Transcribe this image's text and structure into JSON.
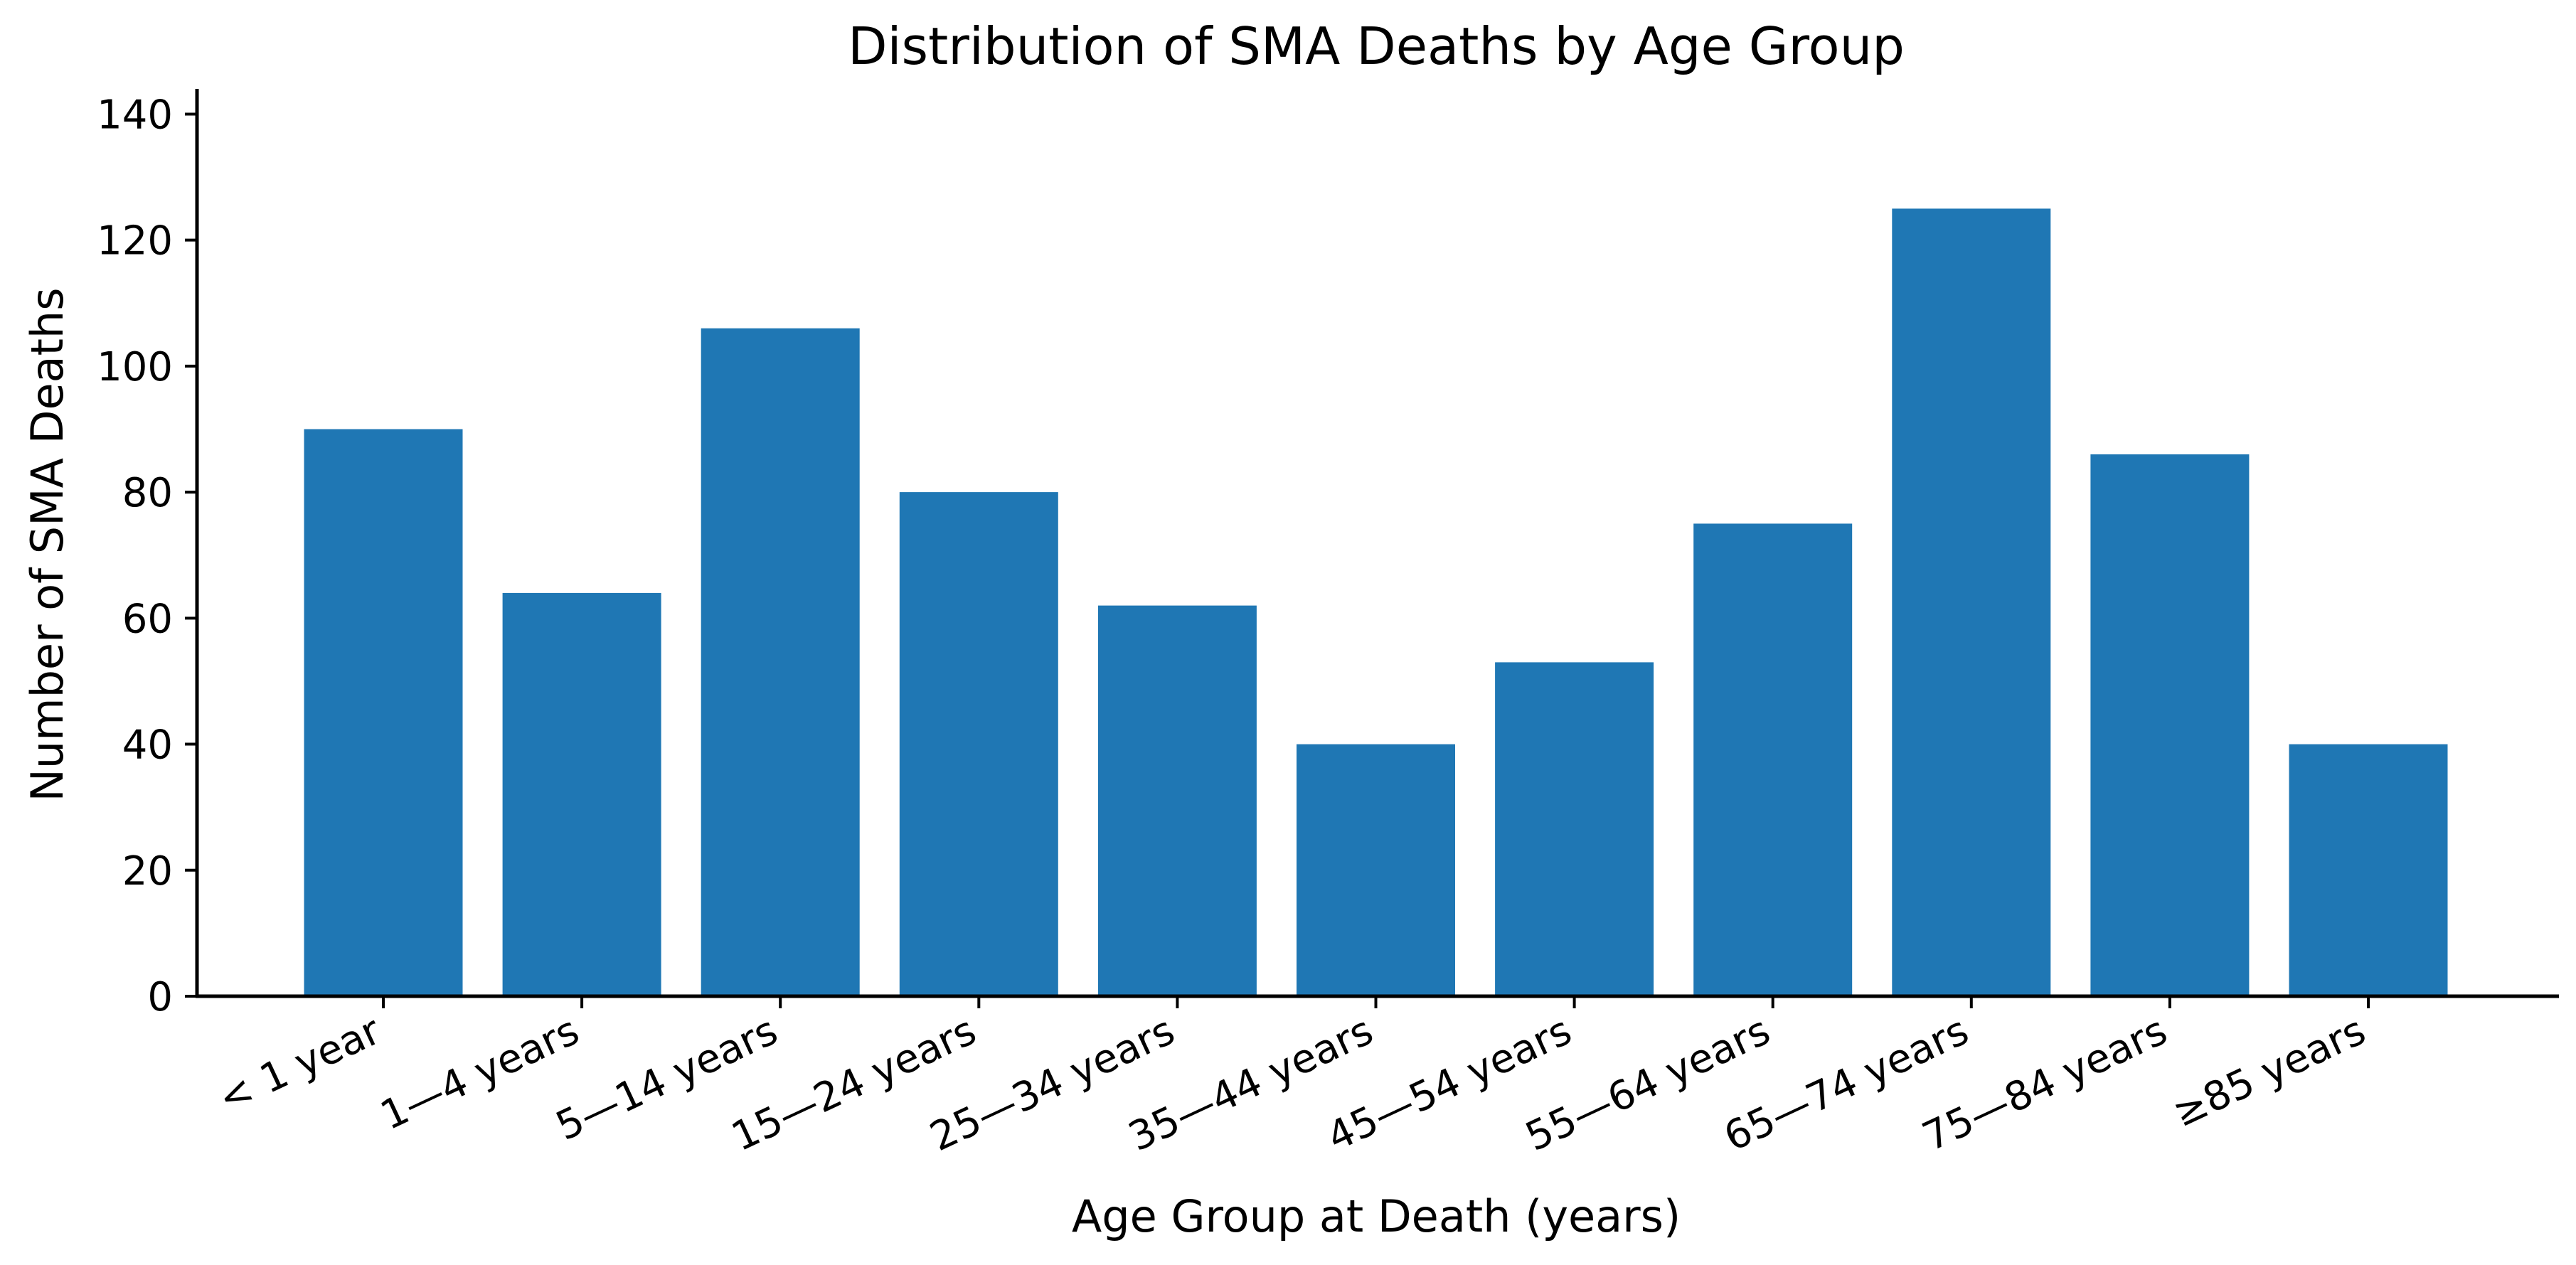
{
  "colors": {
    "bar": "#1f77b4",
    "axis": "#000000",
    "background": "#ffffff"
  },
  "chart_data": {
    "type": "bar",
    "title": "Distribution of SMA Deaths by Age Group",
    "xlabel": "Age Group at Death (years)",
    "ylabel": "Number of SMA Deaths",
    "categories": [
      "< 1 year",
      "1—4 years",
      "5—14 years",
      "15—24 years",
      "25—34 years",
      "35—44 years",
      "45—54 years",
      "55—64 years",
      "65—74 years",
      "75—84 years",
      "≥85 years"
    ],
    "values": [
      90,
      64,
      106,
      80,
      62,
      40,
      53,
      75,
      125,
      86,
      40
    ],
    "ylim": [
      0,
      144
    ],
    "yticks": [
      0,
      20,
      40,
      60,
      80,
      100,
      120,
      140
    ],
    "grid": false,
    "legend": "none",
    "spines": "left-bottom"
  }
}
